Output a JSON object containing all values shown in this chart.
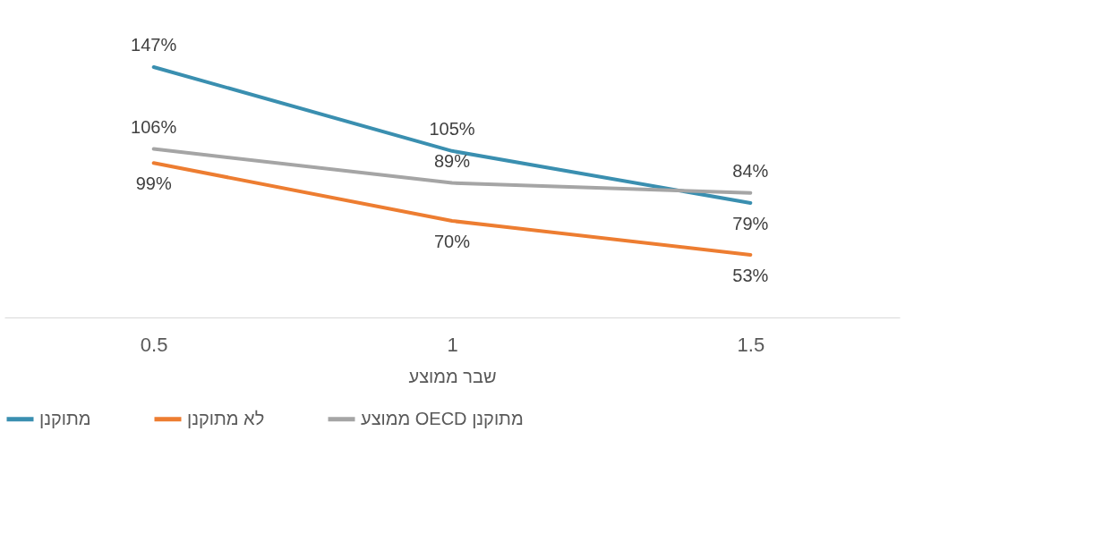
{
  "chart_data": {
    "type": "line",
    "xlabel": "שבר ממוצע",
    "categories": [
      "0.5",
      "1",
      "1.5"
    ],
    "series": [
      {
        "name": "מתוקנן",
        "color": "#3a8fb0",
        "values": [
          147,
          105,
          79
        ],
        "value_labels": [
          "147%",
          "105%",
          "79%"
        ]
      },
      {
        "name": "לא מתוקנן",
        "color": "#ed7d31",
        "values": [
          99,
          70,
          53
        ],
        "value_labels": [
          "99%",
          "70%",
          "53%"
        ]
      },
      {
        "name": "ממוצע OECD מתוקנן",
        "color": "#a5a5a5",
        "values": [
          106,
          89,
          84
        ],
        "value_labels": [
          "106%",
          "89%",
          "84%"
        ]
      }
    ],
    "tick_labels": "x",
    "grid": false,
    "legend": "bottom",
    "marker": "none",
    "line_style": "solid"
  }
}
